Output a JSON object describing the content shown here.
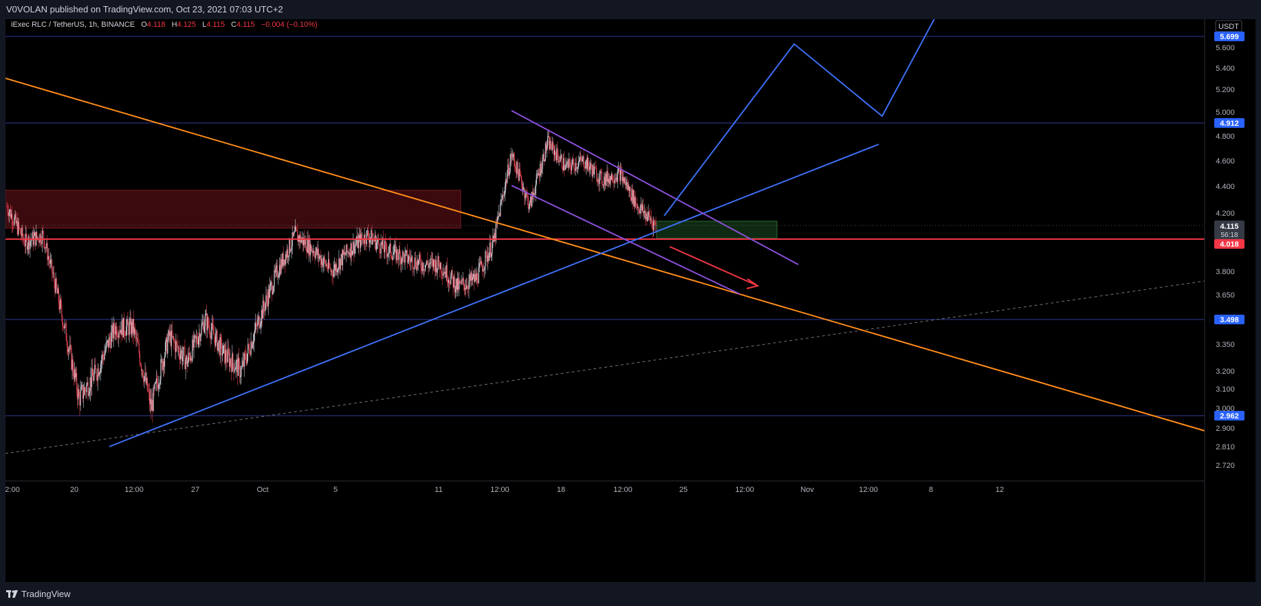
{
  "header": {
    "publisher": "V0VOLAN published on TradingView.com, Oct 23, 2021 07:03 UTC+2"
  },
  "legend": {
    "symbol": "iExec RLC / TetherUS, 1h, BINANCE",
    "o_label": "O",
    "o_value": "4.118",
    "h_label": "H",
    "h_value": "4.125",
    "l_label": "L",
    "l_value": "4.115",
    "c_label": "C",
    "c_value": "4.115",
    "change": "−0.004 (−0.10%)"
  },
  "currency_badge": "USDT",
  "footer": {
    "brand": "TradingView"
  },
  "colors": {
    "background": "#000000",
    "up": "#d1d4dc",
    "down": "#e0404f",
    "level_line": "#2f3b9a",
    "support_line": "#f23645",
    "trend_blue": "#3d6ff5",
    "trend_orange": "#ff8c1a",
    "channel_purple": "#8c4fd8",
    "arrow_red": "#f23645",
    "zone_red": "#3a0a0e",
    "zone_green": "#0f2a12"
  },
  "chart_data": {
    "type": "candlestick",
    "y_axis_ticks": [
      "5.600",
      "5.400",
      "5.200",
      "5.000",
      "4.800",
      "4.600",
      "4.400",
      "4.200",
      "3.800",
      "3.650",
      "3.350",
      "3.200",
      "3.100",
      "3.000",
      "2.900",
      "2.810",
      "2.720"
    ],
    "x_axis_ticks": [
      "2:00",
      "20",
      "12:00",
      "27",
      "Oct",
      "5",
      "11",
      "12:00",
      "18",
      "12:00",
      "25",
      "12:00",
      "Nov",
      "12:00",
      "8",
      "12"
    ],
    "horizontal_levels": [
      {
        "price": "5.699",
        "color": "#2962ff"
      },
      {
        "price": "4.912",
        "color": "#2962ff"
      },
      {
        "price": "3.498",
        "color": "#2962ff"
      },
      {
        "price": "2.962",
        "color": "#2962ff"
      },
      {
        "price": "4.018",
        "color": "#f23645"
      }
    ],
    "last_price": {
      "price": "4.115",
      "countdown": "56:18"
    },
    "price_path": [
      [
        "Sep 16",
        4.25
      ],
      [
        "Sep 17",
        4.0
      ],
      [
        "Sep 18",
        4.05
      ],
      [
        "Sep 19",
        3.55
      ],
      [
        "Sep 20",
        3.05
      ],
      [
        "Sep 21",
        3.2
      ],
      [
        "Sep 22",
        3.45
      ],
      [
        "Sep 23",
        3.45
      ],
      [
        "Sep 24",
        3.0
      ],
      [
        "Sep 25",
        3.4
      ],
      [
        "Sep 26",
        3.25
      ],
      [
        "Sep 27",
        3.5
      ],
      [
        "Sep 28",
        3.3
      ],
      [
        "Sep 29",
        3.2
      ],
      [
        "Sep 30",
        3.5
      ],
      [
        "Oct 1",
        3.8
      ],
      [
        "Oct 2",
        4.05
      ],
      [
        "Oct 3",
        3.95
      ],
      [
        "Oct 4",
        3.8
      ],
      [
        "Oct 5",
        3.95
      ],
      [
        "Oct 6",
        4.05
      ],
      [
        "Oct 7",
        3.95
      ],
      [
        "Oct 8",
        3.9
      ],
      [
        "Oct 9",
        3.85
      ],
      [
        "Oct 10",
        3.85
      ],
      [
        "Oct 11",
        3.7
      ],
      [
        "Oct 12",
        3.75
      ],
      [
        "Oct 13",
        4.0
      ],
      [
        "Oct 14",
        4.65
      ],
      [
        "Oct 15",
        4.25
      ],
      [
        "Oct 16",
        4.75
      ],
      [
        "Oct 17",
        4.55
      ],
      [
        "Oct 18",
        4.6
      ],
      [
        "Oct 19",
        4.45
      ],
      [
        "Oct 20",
        4.5
      ],
      [
        "Oct 21",
        4.25
      ],
      [
        "Oct 22",
        4.115
      ]
    ],
    "drawings": [
      {
        "kind": "trendline",
        "color": "orange",
        "description": "long-term descending resistance"
      },
      {
        "kind": "trendline",
        "color": "blue",
        "description": "ascending support"
      },
      {
        "kind": "channel",
        "color": "purple",
        "description": "descending channel"
      },
      {
        "kind": "path",
        "color": "blue",
        "description": "projected bullish move"
      },
      {
        "kind": "arrow",
        "color": "red",
        "description": "projected bearish move"
      },
      {
        "kind": "zone",
        "color": "red",
        "description": "resistance zone"
      },
      {
        "kind": "zone",
        "color": "green",
        "description": "entry zone"
      }
    ]
  }
}
